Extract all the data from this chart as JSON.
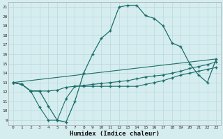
{
  "xlabel": "Humidex (Indice chaleur)",
  "bg_color": "#d6edf0",
  "grid_color": "#b8d8dc",
  "line_color": "#1a6e6a",
  "xlim": [
    -0.5,
    23.5
  ],
  "ylim": [
    8.5,
    21.5
  ],
  "xticks": [
    0,
    1,
    2,
    3,
    4,
    5,
    6,
    7,
    8,
    9,
    10,
    11,
    12,
    13,
    14,
    15,
    16,
    17,
    18,
    19,
    20,
    21,
    22,
    23
  ],
  "yticks": [
    9,
    10,
    11,
    12,
    13,
    14,
    15,
    16,
    17,
    18,
    19,
    20,
    21
  ],
  "line1_x": [
    0,
    1,
    2,
    3,
    4,
    5,
    6,
    7,
    8,
    9,
    10,
    11,
    12,
    13,
    14,
    15,
    16,
    17,
    18,
    19,
    20,
    21,
    22,
    23
  ],
  "line1_y": [
    13,
    12.8,
    12.1,
    12.1,
    10.5,
    9.0,
    8.8,
    11.0,
    14.0,
    16.0,
    17.7,
    18.5,
    21.0,
    21.2,
    21.2,
    20.1,
    19.8,
    19.0,
    17.2,
    16.8,
    15.0,
    13.8,
    13.0,
    15.5
  ],
  "line2_x": [
    0,
    1,
    2,
    3,
    4,
    5,
    6,
    7,
    8,
    9,
    10,
    11,
    12,
    13,
    14,
    15,
    16,
    17,
    18,
    19,
    20,
    21,
    22,
    23
  ],
  "line2_y": [
    13,
    12.8,
    12.1,
    12.1,
    12.1,
    12.2,
    12.5,
    12.6,
    12.7,
    12.8,
    12.9,
    13.0,
    13.1,
    13.2,
    13.4,
    13.6,
    13.7,
    13.8,
    14.0,
    14.2,
    14.5,
    14.7,
    14.9,
    15.2
  ],
  "line3_x": [
    0,
    23
  ],
  "line3_y": [
    13,
    15.5
  ],
  "line4_x": [
    0,
    1,
    2,
    3,
    4,
    5,
    6,
    7,
    8,
    9,
    10,
    11,
    12,
    13,
    14,
    15,
    16,
    17,
    18,
    19,
    20,
    21,
    22,
    23
  ],
  "line4_y": [
    13,
    12.8,
    12.1,
    10.4,
    9.0,
    9.0,
    11.3,
    12.6,
    12.6,
    12.6,
    12.6,
    12.6,
    12.6,
    12.6,
    12.6,
    12.8,
    13.0,
    13.2,
    13.5,
    13.8,
    14.0,
    14.2,
    14.4,
    14.6
  ]
}
